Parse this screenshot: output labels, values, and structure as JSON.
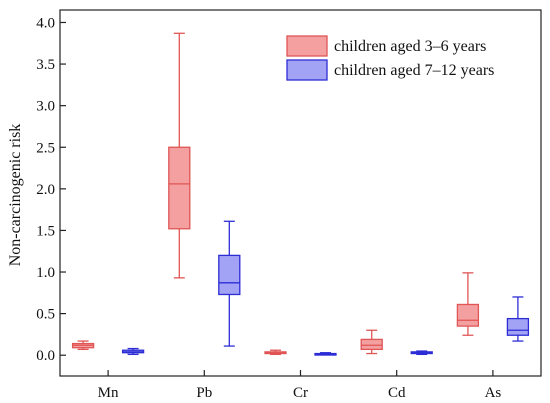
{
  "chart_data": {
    "type": "box",
    "ylabel": "Non-carcinogenic risk",
    "xlabel": "",
    "ylim": [
      -0.25,
      4.15
    ],
    "yticks": [
      0.0,
      0.5,
      1.0,
      1.5,
      2.0,
      2.5,
      3.0,
      3.5,
      4.0
    ],
    "ytick_labels": [
      "0.0",
      "0.5",
      "1.0",
      "1.5",
      "2.0",
      "2.5",
      "3.0",
      "3.5",
      "4.0"
    ],
    "categories": [
      "Mn",
      "Pb",
      "Cr",
      "Cd",
      "As"
    ],
    "legend_position": "top-right",
    "grid": false,
    "series": [
      {
        "name": "children aged 3–6 years",
        "color": "#e05555",
        "fill": "#f4a0a0",
        "boxes": [
          {
            "min": 0.07,
            "q1": 0.09,
            "median": 0.12,
            "q3": 0.14,
            "max": 0.17
          },
          {
            "min": 0.93,
            "q1": 1.52,
            "median": 2.06,
            "q3": 2.5,
            "max": 3.87
          },
          {
            "min": 0.01,
            "q1": 0.02,
            "median": 0.03,
            "q3": 0.04,
            "max": 0.06
          },
          {
            "min": 0.02,
            "q1": 0.07,
            "median": 0.12,
            "q3": 0.19,
            "max": 0.3
          },
          {
            "min": 0.24,
            "q1": 0.35,
            "median": 0.42,
            "q3": 0.61,
            "max": 0.99
          }
        ]
      },
      {
        "name": "children aged 7–12 years",
        "color": "#2d2dd6",
        "fill": "#a3a3f5",
        "boxes": [
          {
            "min": 0.01,
            "q1": 0.03,
            "median": 0.04,
            "q3": 0.06,
            "max": 0.08
          },
          {
            "min": 0.11,
            "q1": 0.73,
            "median": 0.87,
            "q3": 1.2,
            "max": 1.61
          },
          {
            "min": 0.005,
            "q1": 0.01,
            "median": 0.015,
            "q3": 0.02,
            "max": 0.03
          },
          {
            "min": 0.01,
            "q1": 0.02,
            "median": 0.03,
            "q3": 0.04,
            "max": 0.05
          },
          {
            "min": 0.17,
            "q1": 0.24,
            "median": 0.3,
            "q3": 0.44,
            "max": 0.7
          }
        ]
      }
    ]
  }
}
